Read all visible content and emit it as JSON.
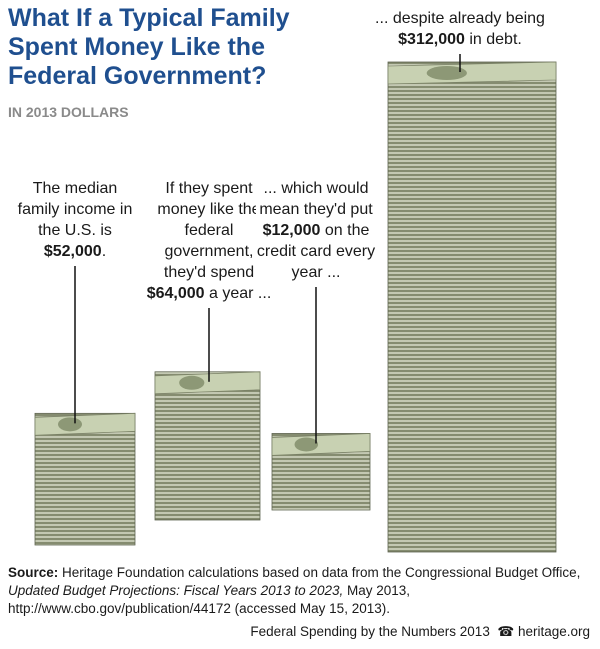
{
  "chart_data": {
    "type": "bar",
    "title": "What If a Typical Family Spent Money Like the Federal Government?",
    "subtitle": "IN 2013 DOLLARS",
    "categories": [
      null,
      null,
      null,
      null
    ],
    "values": [
      52000,
      64000,
      12000,
      312000
    ],
    "value_labels": [
      "$52,000",
      "$64,000",
      "$12,000",
      "$312,000"
    ],
    "color": "#8f9679",
    "annotations": [
      {
        "before": "The median family income in the U.S. is",
        "after": "."
      },
      {
        "before": "If they spent money like the federal government, they'd spend",
        "after": "a year ..."
      },
      {
        "before": "... which would mean they'd put",
        "after": "on the credit card every year ..."
      },
      {
        "before": "... despite already being",
        "after": "in debt."
      }
    ],
    "source": {
      "label": "Source:",
      "parts": [
        "Heritage Foundation calculations based on data from the Congressional Budget Office,",
        "Updated Budget Projections: Fiscal Years 2013 to 2023,",
        "May 2013, http://www.cbo.gov/publication/44172 (accessed May 15, 2013)."
      ]
    },
    "footer": "Federal Spending by the Numbers 2013",
    "site": "heritage.org"
  }
}
